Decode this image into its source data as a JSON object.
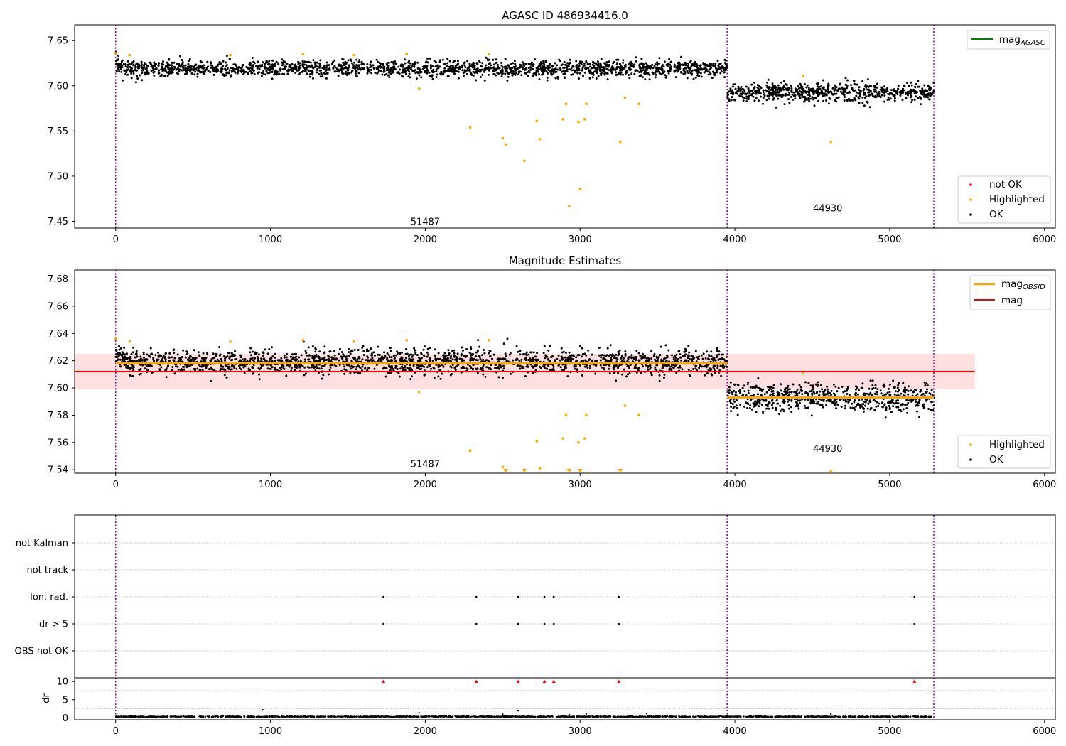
{
  "chart_data": [
    {
      "type": "scatter",
      "title": "AGASC ID 486934416.0",
      "xlabel": "",
      "ylabel": "",
      "xlim": [
        -265,
        6070
      ],
      "ylim": [
        7.4425,
        7.6675
      ],
      "xticks": [
        0,
        1000,
        2000,
        3000,
        4000,
        5000,
        6000
      ],
      "yticks": [
        7.45,
        7.5,
        7.55,
        7.6,
        7.65
      ],
      "ytick_labels": [
        "7.45",
        "7.50",
        "7.55",
        "7.60",
        "7.65"
      ],
      "obsid_boundaries": [
        0,
        3950,
        5285
      ],
      "obsid_labels": [
        {
          "text": "51487",
          "x": 2000,
          "y": 7.446
        },
        {
          "text": "44930",
          "x": 4600,
          "y": 7.461
        }
      ],
      "lines": [
        {
          "name": "mag",
          "sub": "AGASC",
          "color": "#008000"
        }
      ],
      "ok_segments": [
        {
          "x_start": 0,
          "x_end": 3950,
          "center": 7.619,
          "spread": 0.0045,
          "count": 2000,
          "start_boost": 0.006
        },
        {
          "x_start": 3950,
          "x_end": 5285,
          "center": 7.593,
          "spread": 0.005,
          "count": 700,
          "start_boost": 0.0
        }
      ],
      "highlighted_points": [
        [
          0,
          7.636
        ],
        [
          90,
          7.634
        ],
        [
          740,
          7.634
        ],
        [
          1210,
          7.635
        ],
        [
          1540,
          7.634
        ],
        [
          1880,
          7.635
        ],
        [
          1960,
          7.597
        ],
        [
          2290,
          7.554
        ],
        [
          2410,
          7.635
        ],
        [
          2500,
          7.542
        ],
        [
          2520,
          7.535
        ],
        [
          2640,
          7.517
        ],
        [
          2720,
          7.561
        ],
        [
          2740,
          7.541
        ],
        [
          2890,
          7.563
        ],
        [
          2910,
          7.58
        ],
        [
          2930,
          7.467
        ],
        [
          2990,
          7.56
        ],
        [
          3000,
          7.486
        ],
        [
          3030,
          7.563
        ],
        [
          3040,
          7.58
        ],
        [
          3260,
          7.538
        ],
        [
          3290,
          7.587
        ],
        [
          3380,
          7.58
        ],
        [
          4440,
          7.611
        ],
        [
          4620,
          7.538
        ]
      ],
      "not_ok_points": [],
      "legend_markers": [
        {
          "label": "not OK",
          "color": "#ff0000"
        },
        {
          "label": "Highlighted",
          "color": "#ffa500"
        },
        {
          "label": "OK",
          "color": "#000000"
        }
      ]
    },
    {
      "type": "scatter",
      "title": "Magnitude Estimates",
      "xlabel": "",
      "ylabel": "",
      "xlim": [
        -265,
        6070
      ],
      "ylim": [
        7.5375,
        7.6865
      ],
      "xticks": [
        0,
        1000,
        2000,
        3000,
        4000,
        5000,
        6000
      ],
      "yticks": [
        7.54,
        7.56,
        7.58,
        7.6,
        7.62,
        7.64,
        7.66,
        7.68
      ],
      "ytick_labels": [
        "7.54",
        "7.56",
        "7.58",
        "7.60",
        "7.62",
        "7.64",
        "7.66",
        "7.68"
      ],
      "obsid_boundaries": [
        0,
        3950,
        5285
      ],
      "obsid_labels": [
        {
          "text": "51487",
          "x": 2000,
          "y": 7.542
        },
        {
          "text": "44930",
          "x": 4600,
          "y": 7.553
        }
      ],
      "mag": 7.612,
      "mag_band": [
        7.599,
        7.625
      ],
      "mag_x_range": [
        -265,
        5550
      ],
      "obsid_mags": [
        {
          "x_start": 0,
          "x_end": 3950,
          "value": 7.618
        },
        {
          "x_start": 3950,
          "x_end": 5285,
          "value": 7.593
        }
      ],
      "lines": [
        {
          "name": "mag",
          "sub": "OBSID",
          "color": "#ffa500"
        },
        {
          "name": "mag",
          "sub": "",
          "color": "#ff0000"
        }
      ],
      "ok_segments": [
        {
          "x_start": 0,
          "x_end": 3950,
          "center": 7.619,
          "spread": 0.0045,
          "count": 2000,
          "start_boost": 0.006
        },
        {
          "x_start": 3950,
          "x_end": 5285,
          "center": 7.593,
          "spread": 0.005,
          "count": 700,
          "start_boost": 0.0
        }
      ],
      "highlighted_points": [
        [
          0,
          7.636
        ],
        [
          90,
          7.634
        ],
        [
          740,
          7.634
        ],
        [
          1210,
          7.635
        ],
        [
          1540,
          7.634
        ],
        [
          1880,
          7.635
        ],
        [
          1960,
          7.597
        ],
        [
          2290,
          7.554
        ],
        [
          2410,
          7.635
        ],
        [
          2500,
          7.542
        ],
        [
          2720,
          7.561
        ],
        [
          2740,
          7.541
        ],
        [
          2890,
          7.563
        ],
        [
          2910,
          7.58
        ],
        [
          2990,
          7.56
        ],
        [
          3030,
          7.563
        ],
        [
          3040,
          7.58
        ],
        [
          3290,
          7.587
        ],
        [
          3380,
          7.58
        ],
        [
          4440,
          7.611
        ],
        [
          4620,
          7.539
        ]
      ],
      "clipped_points_x": [
        2520,
        2640,
        2930,
        3000,
        3260
      ],
      "legend_markers": [
        {
          "label": "Highlighted",
          "color": "#ffa500"
        },
        {
          "label": "OK",
          "color": "#000000"
        }
      ]
    },
    {
      "type": "scatter",
      "title": "",
      "xlabel": "",
      "ylabel": "",
      "xlim": [
        -265,
        6070
      ],
      "flags": [
        "not Kalman",
        "not track",
        "Ion. rad.",
        "dr > 5",
        "OBS not OK"
      ],
      "obsid_boundaries": [
        0,
        3950,
        5285
      ],
      "flag_points": {
        "not Kalman": [],
        "not track": [],
        "Ion. rad.": [
          1730,
          2330,
          2600,
          2770,
          2830,
          3250,
          5160
        ],
        "dr > 5": [
          1730,
          2330,
          2600,
          2770,
          2830,
          3250,
          5160
        ],
        "OBS not OK": []
      }
    },
    {
      "type": "scatter",
      "title": "",
      "xlabel": "",
      "ylabel": "dr",
      "xlim": [
        -265,
        6070
      ],
      "ylim": [
        -0.5,
        11
      ],
      "yticks": [
        0,
        5,
        10
      ],
      "ytick_labels": [
        "0",
        "5",
        "10"
      ],
      "obsid_boundaries": [
        0,
        3950,
        5285
      ],
      "clipped_points_x": [
        1730,
        2330,
        2600,
        2770,
        2830,
        3250,
        5160
      ],
      "outlier_points": [
        [
          950,
          2.2
        ],
        [
          1960,
          1.4
        ],
        [
          2500,
          1.0
        ],
        [
          2600,
          2.0
        ],
        [
          2930,
          0.9
        ],
        [
          3040,
          1.1
        ],
        [
          3430,
          1.2
        ],
        [
          4620,
          1.1
        ]
      ],
      "baseline": 0.25
    }
  ]
}
